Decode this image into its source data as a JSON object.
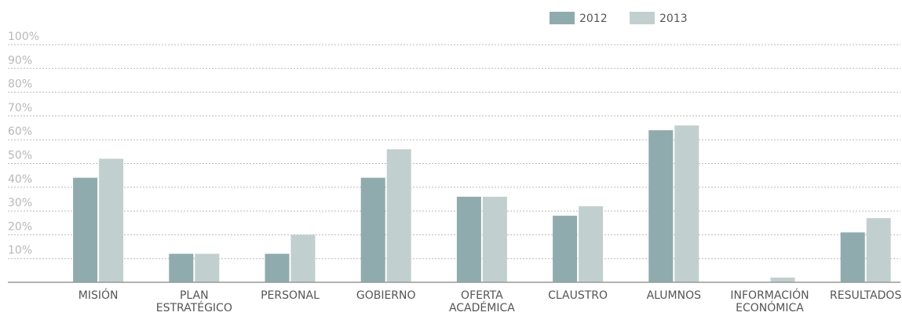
{
  "chart_data": {
    "type": "bar",
    "categories": [
      "MISIÓN",
      "PLAN\nESTRATÉGICO",
      "PERSONAL",
      "GOBIERNO",
      "OFERTA\nACADÉMICA",
      "CLAUSTRO",
      "ALUMNOS",
      "INFORMACIÓN\nECONÓMICA",
      "RESULTADOS"
    ],
    "series": [
      {
        "name": "2012",
        "color": "#8fabad",
        "values": [
          44,
          12,
          12,
          44,
          36,
          28,
          64,
          0,
          21
        ]
      },
      {
        "name": "2013",
        "color": "#c2cfcf",
        "values": [
          52,
          12,
          20,
          56,
          36,
          32,
          66,
          2,
          27
        ]
      }
    ],
    "ylim": [
      0,
      100
    ],
    "yticks": [
      {
        "value": 10,
        "label": "10%"
      },
      {
        "value": 20,
        "label": "20%"
      },
      {
        "value": 30,
        "label": "30%"
      },
      {
        "value": 40,
        "label": "40%"
      },
      {
        "value": 50,
        "label": "50%"
      },
      {
        "value": 60,
        "label": "60%"
      },
      {
        "value": 70,
        "label": "70%"
      },
      {
        "value": 80,
        "label": "80%"
      },
      {
        "value": 90,
        "label": "90%"
      },
      {
        "value": 100,
        "label": "100%"
      }
    ],
    "grid": true,
    "legend": "top"
  }
}
